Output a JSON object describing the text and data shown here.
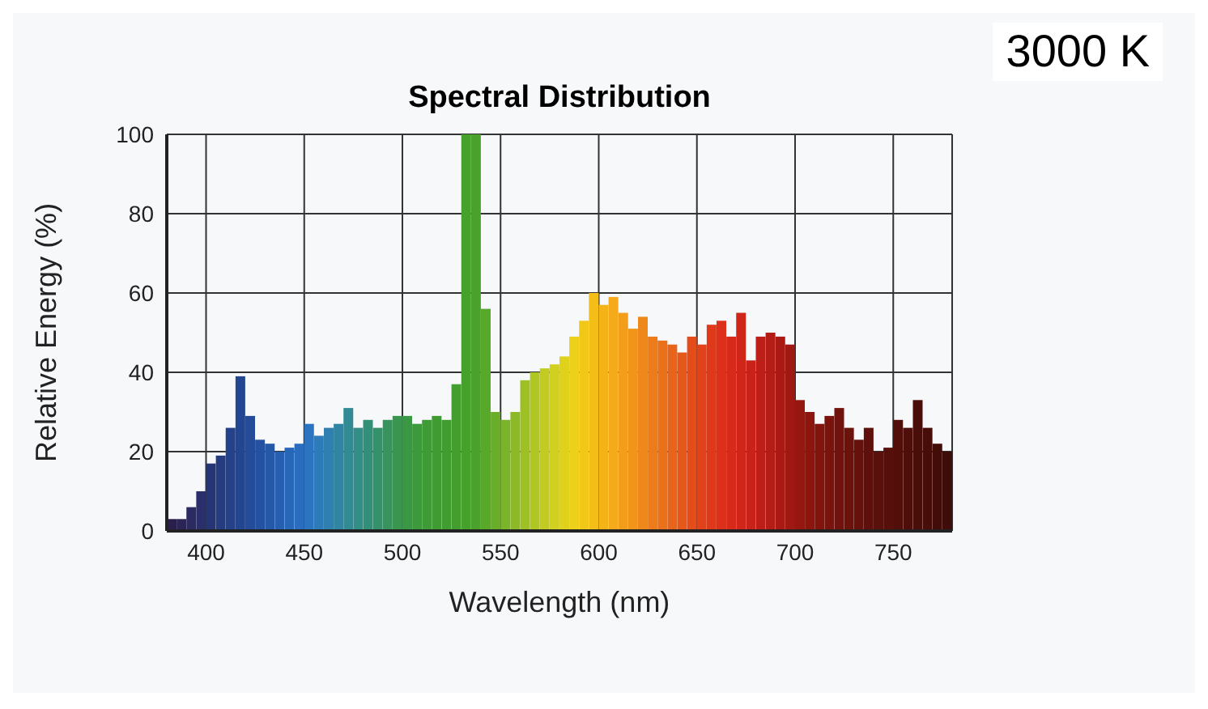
{
  "chart_data": {
    "type": "histogram",
    "title": "Spectral Distribution",
    "xlabel": "Wavelength (nm)",
    "ylabel": "Relative Energy (%)",
    "annotations": [
      "3000 K"
    ],
    "bins": [
      380,
      385,
      390,
      395,
      400,
      405,
      410,
      415,
      420,
      425,
      430,
      435,
      440,
      445,
      450,
      455,
      460,
      465,
      470,
      475,
      480,
      485,
      490,
      495,
      500,
      505,
      510,
      515,
      520,
      525,
      530,
      535,
      540,
      545,
      550,
      555,
      560,
      565,
      570,
      575,
      580,
      585,
      590,
      595,
      600,
      605,
      610,
      615,
      620,
      625,
      630,
      635,
      640,
      645,
      650,
      655,
      660,
      665,
      670,
      675,
      680,
      685,
      690,
      695,
      700,
      705,
      710,
      715,
      720,
      725,
      730,
      735,
      740,
      745,
      750,
      755,
      760,
      765,
      770,
      775,
      780
    ],
    "values": [
      3,
      3,
      6,
      10,
      17,
      19,
      26,
      39,
      29,
      23,
      22,
      20,
      21,
      22,
      27,
      24,
      26,
      27,
      31,
      26,
      28,
      26,
      28,
      29,
      29,
      27,
      28,
      29,
      28,
      37,
      100,
      100,
      56,
      30,
      28,
      30,
      38,
      40,
      41,
      42,
      44,
      49,
      53,
      60,
      57,
      59,
      55,
      51,
      54,
      49,
      48,
      47,
      45,
      49,
      47,
      52,
      53,
      49,
      55,
      43,
      49,
      50,
      49,
      47,
      33,
      30,
      27,
      29,
      31,
      26,
      23,
      26,
      20,
      21,
      28,
      26,
      33,
      26,
      22,
      20
    ],
    "colors": [
      "#2a1f4a",
      "#2c2456",
      "#2c2a62",
      "#2a2f6c",
      "#263675",
      "#253c80",
      "#24418a",
      "#234690",
      "#244c98",
      "#2552a0",
      "#2658a8",
      "#275fb0",
      "#2866b8",
      "#2a6dbe",
      "#2c74c0",
      "#2e7bba",
      "#2f80b0",
      "#3086a2",
      "#318a94",
      "#328e86",
      "#339078",
      "#34926a",
      "#36945c",
      "#38964e",
      "#3a9844",
      "#3c9a3c",
      "#3e9b36",
      "#409c32",
      "#429d30",
      "#449e2e",
      "#46a02c",
      "#4aa22c",
      "#58a82a",
      "#68ae28",
      "#7ab428",
      "#8cba26",
      "#9ec024",
      "#b0c622",
      "#c2cc20",
      "#d2d01e",
      "#e0d21c",
      "#ecd01a",
      "#f2c818",
      "#f4be18",
      "#f4b418",
      "#f4aa1a",
      "#f29e1a",
      "#f0941a",
      "#ee881a",
      "#ec7c1a",
      "#ea701a",
      "#e8641a",
      "#e6581a",
      "#e44c1a",
      "#e2421a",
      "#e0381a",
      "#dc301a",
      "#d82a1a",
      "#d0261a",
      "#c8221a",
      "#be1e18",
      "#b41c16",
      "#aa1a14",
      "#a01812",
      "#961610",
      "#8c150e",
      "#82140e",
      "#7a130c",
      "#72120c",
      "#6c120c",
      "#66110c",
      "#60100b",
      "#5a100b",
      "#560f0a",
      "#520f0a",
      "#4e0e0a",
      "#4a0e0a",
      "#460d09",
      "#420d09",
      "#3e0c09"
    ],
    "xlim": [
      380,
      780
    ],
    "xticks": [
      400,
      450,
      500,
      550,
      600,
      650,
      700,
      750
    ],
    "ylim": [
      0,
      100
    ],
    "yticks": [
      0,
      20,
      40,
      60,
      80,
      100
    ],
    "grid": true
  }
}
